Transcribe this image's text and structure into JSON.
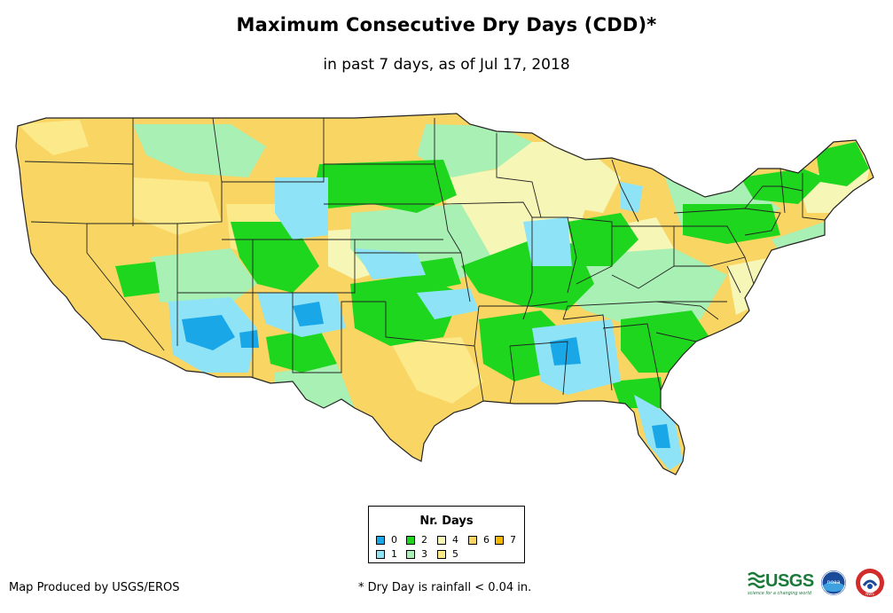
{
  "title": "Maximum Consecutive Dry Days (CDD)*",
  "subtitle": "in past 7 days, as of Jul 17, 2018",
  "legend": {
    "title": "Nr. Days",
    "items": [
      {
        "label": "0",
        "color": "#1aa7e8"
      },
      {
        "label": "1",
        "color": "#8fe3f7"
      },
      {
        "label": "2",
        "color": "#1ed61e"
      },
      {
        "label": "3",
        "color": "#a8f0b4"
      },
      {
        "label": "4",
        "color": "#f6f7b6"
      },
      {
        "label": "5",
        "color": "#fbe98a"
      },
      {
        "label": "6",
        "color": "#f9d563"
      },
      {
        "label": "7",
        "color": "#f8b800"
      }
    ]
  },
  "footer": {
    "credit": "Map Produced by USGS/EROS",
    "note": "* Dry Day is rainfall < 0.04 in."
  },
  "logos": {
    "usgs": "USGS",
    "usgs_tagline": "science for a changing world",
    "noaa": "noaa",
    "nws": "NWS"
  }
}
